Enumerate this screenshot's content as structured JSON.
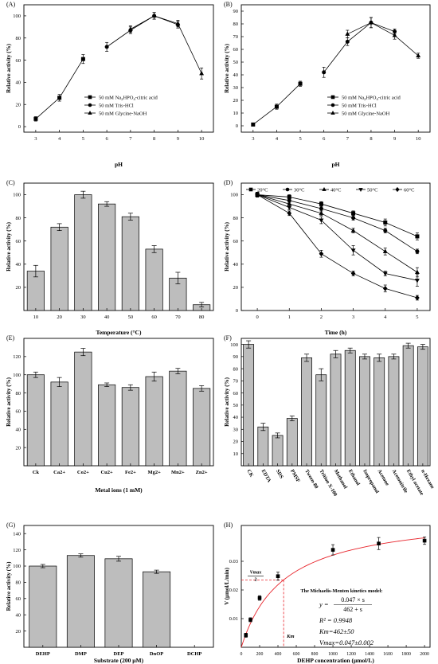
{
  "figure": {
    "description": ""
  },
  "chart_data": [
    {
      "id": "A",
      "panel_label": "(A)",
      "type": "line",
      "xlabel": "pH",
      "ylabel": "Relative activity (%)",
      "xlim": [
        2.5,
        10.5
      ],
      "ylim": [
        -5,
        110
      ],
      "xticks": [
        3,
        4,
        5,
        6,
        7,
        8,
        9,
        10
      ],
      "yticks": [
        0,
        20,
        40,
        60,
        80,
        100
      ],
      "legend_position": "bottom-center",
      "series": [
        {
          "name": "50 mM Na2HPO4-citric acid",
          "marker": "square",
          "x": [
            3,
            4,
            5
          ],
          "y": [
            7,
            26,
            61
          ],
          "err": [
            2,
            3,
            4
          ]
        },
        {
          "name": "50 mM Tris-HCl",
          "marker": "circle",
          "x": [
            6,
            7,
            8,
            9
          ],
          "y": [
            72,
            87,
            100,
            92
          ],
          "err": [
            4,
            3,
            3,
            3
          ]
        },
        {
          "name": "50 mM Glycine-NaOH",
          "marker": "triangle",
          "x": [
            7,
            8,
            9,
            10
          ],
          "y": [
            88,
            100,
            93,
            48
          ],
          "err": [
            3,
            3,
            3,
            5
          ]
        }
      ]
    },
    {
      "id": "B",
      "panel_label": "(B)",
      "type": "line",
      "xlabel": "pH",
      "ylabel": "Relative activity (%)",
      "xlim": [
        2.5,
        10.5
      ],
      "ylim": [
        -5,
        95
      ],
      "xticks": [
        3,
        4,
        5,
        6,
        7,
        8,
        9,
        10
      ],
      "yticks": [
        0,
        10,
        20,
        30,
        40,
        50,
        60,
        70,
        80,
        90
      ],
      "legend_position": "bottom-right",
      "series": [
        {
          "name": "50 mM Na2HPO4-citric acid",
          "marker": "square",
          "x": [
            3,
            4,
            5
          ],
          "y": [
            1,
            15,
            33
          ],
          "err": [
            1,
            2,
            2
          ]
        },
        {
          "name": "50 mM Tris-HCl",
          "marker": "circle",
          "x": [
            6,
            7,
            8,
            9
          ],
          "y": [
            42,
            66,
            81,
            74
          ],
          "err": [
            4,
            3,
            4,
            2
          ]
        },
        {
          "name": "50 mM Glycine-NaOH",
          "marker": "triangle",
          "x": [
            7,
            8,
            9,
            10
          ],
          "y": [
            72,
            81,
            71,
            55
          ],
          "err": [
            3,
            4,
            3,
            2
          ]
        }
      ]
    },
    {
      "id": "C",
      "panel_label": "(C)",
      "type": "bar",
      "xlabel": "Temperature (°C)",
      "ylabel": "Relative activity (%)",
      "categories": [
        "10",
        "20",
        "30",
        "40",
        "50",
        "60",
        "70",
        "80"
      ],
      "values": [
        34,
        72,
        100,
        92,
        81,
        53,
        28,
        5
      ],
      "err": [
        5,
        3,
        3,
        2,
        3,
        3,
        5,
        2
      ],
      "ylim": [
        0,
        110
      ],
      "yticks": [
        20,
        40,
        60,
        80,
        100
      ]
    },
    {
      "id": "D",
      "panel_label": "(D)",
      "type": "line",
      "xlabel": "Time (h)",
      "ylabel": "Relative activity (%)",
      "xlim": [
        -0.5,
        5.4
      ],
      "ylim": [
        0,
        110
      ],
      "xticks": [
        0,
        1,
        2,
        3,
        4,
        5
      ],
      "yticks": [
        0,
        20,
        40,
        60,
        80,
        100
      ],
      "legend_position": "top",
      "series": [
        {
          "name": "20°C",
          "marker": "square",
          "x": [
            0,
            1,
            2,
            3,
            4,
            5
          ],
          "y": [
            100,
            98,
            92,
            84,
            76,
            64
          ],
          "err": [
            2,
            2,
            2,
            2,
            3,
            3
          ]
        },
        {
          "name": "30°C",
          "marker": "circle",
          "x": [
            0,
            1,
            2,
            3,
            4,
            5
          ],
          "y": [
            100,
            95,
            88,
            80,
            69,
            51
          ],
          "err": [
            2,
            2,
            2,
            2,
            2,
            2
          ]
        },
        {
          "name": "40°C",
          "marker": "triangle",
          "x": [
            0,
            1,
            2,
            3,
            4,
            5
          ],
          "y": [
            100,
            92,
            84,
            69,
            51,
            33
          ],
          "err": [
            2,
            2,
            2,
            2,
            3,
            4
          ]
        },
        {
          "name": "50°C",
          "marker": "triangle-down",
          "x": [
            0,
            1,
            2,
            3,
            4,
            5
          ],
          "y": [
            100,
            89,
            78,
            52,
            32,
            26
          ],
          "err": [
            2,
            2,
            3,
            4,
            2,
            5
          ]
        },
        {
          "name": "60°C",
          "marker": "diamond",
          "x": [
            0,
            1,
            2,
            3,
            4,
            5
          ],
          "y": [
            100,
            84,
            49,
            32,
            19,
            11
          ],
          "err": [
            2,
            2,
            3,
            2,
            3,
            2
          ]
        }
      ]
    },
    {
      "id": "E",
      "panel_label": "(E)",
      "type": "bar",
      "xlabel": "Metal ions (1 mM)",
      "ylabel": "Relative activity (%)",
      "categories": [
        "Ck",
        "Ca2+",
        "Co2+",
        "Cu2+",
        "Fe2+",
        "Mg2+",
        "Mn2+",
        "Zn2+"
      ],
      "values": [
        100,
        92,
        125,
        89,
        86,
        98,
        104,
        85
      ],
      "err": [
        3,
        5,
        4,
        2,
        3,
        5,
        3,
        3
      ],
      "ylim": [
        0,
        140
      ],
      "yticks": [
        20,
        40,
        60,
        80,
        100,
        120
      ]
    },
    {
      "id": "F",
      "panel_label": "(F)",
      "type": "bar",
      "xlabel": "",
      "ylabel": "Relative activity (%)",
      "categories": [
        "CK",
        "EDTA",
        "SDS",
        "PMSF",
        "Tween-80",
        "Trition X-100",
        "Methanol",
        "Ethanol",
        "Isopropanol",
        "Acetone",
        "Acetonitrile",
        "Ethyl acetate",
        "n-Hexane"
      ],
      "values": [
        100,
        32,
        25,
        39,
        89,
        75,
        92,
        95,
        90,
        89,
        90,
        99,
        98
      ],
      "err": [
        3,
        3,
        2,
        2,
        3,
        5,
        3,
        2,
        2,
        3,
        2,
        2,
        2
      ],
      "ylim": [
        0,
        105
      ],
      "yticks": [
        10,
        20,
        30,
        40,
        50,
        60,
        70,
        80,
        90,
        100
      ]
    },
    {
      "id": "G",
      "panel_label": "(G)",
      "type": "bar",
      "xlabel": "Substrate (200 μM)",
      "ylabel": "Relative activity (%)",
      "categories": [
        "DEHP",
        "DMP",
        "DEP",
        "DnOP",
        "DCHP"
      ],
      "values": [
        100,
        113,
        109,
        93,
        0
      ],
      "err": [
        2,
        2,
        3,
        2,
        0
      ],
      "ylim": [
        0,
        150
      ],
      "yticks": [
        20,
        40,
        60,
        80,
        100,
        120,
        140
      ]
    },
    {
      "id": "H",
      "panel_label": "(H)",
      "type": "scatter",
      "xlabel": "DEHP concentration (μmol/L)",
      "ylabel": "V (μmol/L/min)",
      "xlim": [
        0,
        2060
      ],
      "ylim": [
        0,
        0.0425
      ],
      "xticks": [
        0,
        200,
        400,
        600,
        800,
        1000,
        1200,
        1400,
        1600,
        1800,
        2000
      ],
      "yticks": [
        0.01,
        0.02,
        0.03
      ],
      "x": [
        50,
        100,
        200,
        400,
        1000,
        1500,
        2000
      ],
      "y": [
        0.0042,
        0.0096,
        0.0172,
        0.0248,
        0.034,
        0.0362,
        0.0372
      ],
      "err": [
        0.0007,
        0.0007,
        0.0008,
        0.0014,
        0.0018,
        0.0021,
        0.0013
      ],
      "fit": {
        "type": "michaelis-menten",
        "vmax": 0.047,
        "km": 462
      },
      "vmax_half_label": "Vmax",
      "vmax_half_den": "2",
      "km_label": "Km",
      "annotation": {
        "title": "The Michaelis-Menten kinetics model:",
        "y_eq": "y =",
        "num": "0.047 × s",
        "den": "462 + s",
        "r2": "R² = 0.9948",
        "km": "Km=462±50",
        "vmax": "Vmax=0.047±0.002"
      }
    }
  ]
}
